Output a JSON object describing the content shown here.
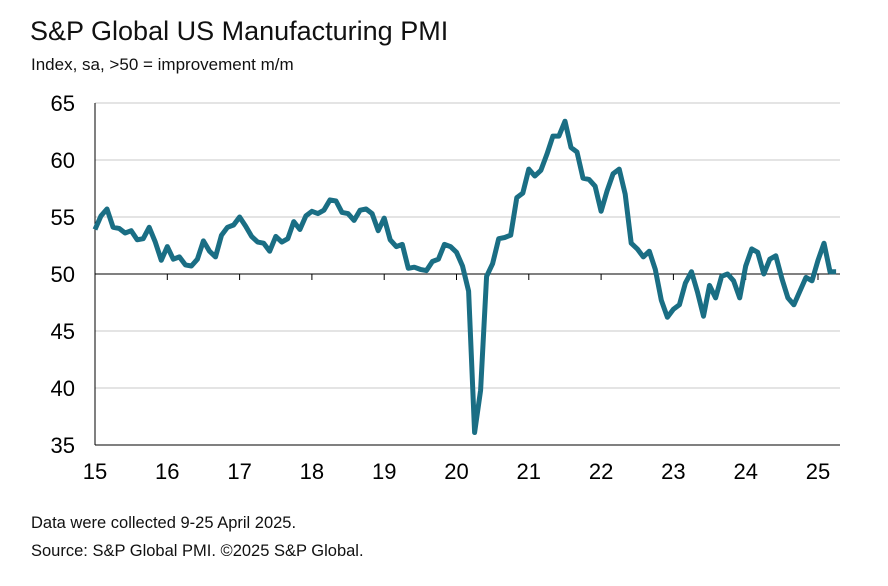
{
  "title": "S&P Global US Manufacturing PMI",
  "subtitle": "Index, sa, >50 = improvement m/m",
  "footnotes": {
    "collected": "Data were collected 9-25 April 2025.",
    "source": "Source: S&P Global PMI. ©2025 S&P Global."
  },
  "colors": {
    "series": "#1a6e84",
    "grid": "#c8c8c8",
    "axis": "#000000"
  },
  "chart_data": {
    "type": "line",
    "title": "S&P Global US Manufacturing PMI",
    "subtitle": "Index, sa, >50 = improvement m/m",
    "xlabel": "",
    "ylabel": "",
    "ylim": [
      35,
      65
    ],
    "yticks": [
      65,
      60,
      55,
      50,
      45,
      40,
      35
    ],
    "xticks": [
      "15",
      "16",
      "17",
      "18",
      "19",
      "20",
      "21",
      "22",
      "23",
      "24",
      "25"
    ],
    "grid": true,
    "series": [
      {
        "x_start": "2015-01",
        "frequency": "monthly",
        "values": [
          53.9,
          55.1,
          55.7,
          54.1,
          54.0,
          53.6,
          53.8,
          53.0,
          53.1,
          54.1,
          52.8,
          51.2,
          52.4,
          51.3,
          51.5,
          50.8,
          50.7,
          51.3,
          52.9,
          52.0,
          51.5,
          53.4,
          54.1,
          54.3,
          55.0,
          54.2,
          53.3,
          52.8,
          52.7,
          52.0,
          53.3,
          52.8,
          53.1,
          54.6,
          53.9,
          55.1,
          55.5,
          55.3,
          55.6,
          56.5,
          56.4,
          55.4,
          55.3,
          54.7,
          55.6,
          55.7,
          55.3,
          53.8,
          54.9,
          53.0,
          52.4,
          52.6,
          50.5,
          50.6,
          50.4,
          50.3,
          51.1,
          51.3,
          52.6,
          52.4,
          51.9,
          50.7,
          48.5,
          36.1,
          39.8,
          49.8,
          50.9,
          53.1,
          53.2,
          53.4,
          56.7,
          57.1,
          59.2,
          58.6,
          59.1,
          60.5,
          62.1,
          62.1,
          63.4,
          61.1,
          60.7,
          58.4,
          58.3,
          57.7,
          55.5,
          57.3,
          58.8,
          59.2,
          57.0,
          52.7,
          52.2,
          51.5,
          52.0,
          50.4,
          47.7,
          46.2,
          46.9,
          47.3,
          49.2,
          50.2,
          48.4,
          46.3,
          49.0,
          47.9,
          49.8,
          50.0,
          49.4,
          47.9,
          50.7,
          52.2,
          51.9,
          50.0,
          51.3,
          51.6,
          49.6,
          47.9,
          47.3,
          48.5,
          49.7,
          49.4,
          51.2,
          52.7,
          50.2,
          50.2
        ]
      }
    ]
  }
}
